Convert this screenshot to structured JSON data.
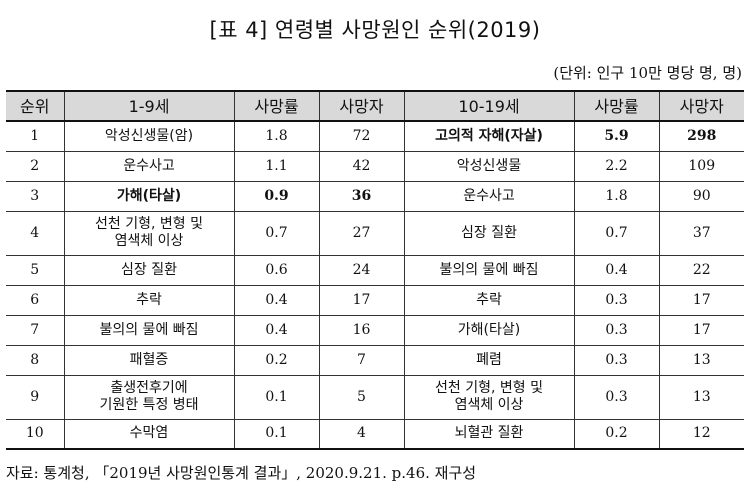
{
  "title": "[표 4] 연령별 사망원인 순위(2019)",
  "unit": "(단위: 인구 10만 명당 명, 명)",
  "table": {
    "headers": [
      "순위",
      "1-9세",
      "사망률",
      "사망자",
      "10-19세",
      "사망률",
      "사망자"
    ],
    "rows": [
      {
        "rank": "1",
        "cause_a": "악성신생물(암)",
        "rate_a": "1.8",
        "deaths_a": "72",
        "cause_b": "고의적 자해(자살)",
        "rate_b": "5.9",
        "deaths_b": "298",
        "bold_a": false,
        "bold_b": true
      },
      {
        "rank": "2",
        "cause_a": "운수사고",
        "rate_a": "1.1",
        "deaths_a": "42",
        "cause_b": "악성신생물",
        "rate_b": "2.2",
        "deaths_b": "109",
        "bold_a": false,
        "bold_b": false
      },
      {
        "rank": "3",
        "cause_a": "가해(타살)",
        "rate_a": "0.9",
        "deaths_a": "36",
        "cause_b": "운수사고",
        "rate_b": "1.8",
        "deaths_b": "90",
        "bold_a": true,
        "bold_b": false
      },
      {
        "rank": "4",
        "cause_a": "선천 기형, 변형 및\n염색체 이상",
        "rate_a": "0.7",
        "deaths_a": "27",
        "cause_b": "심장 질환",
        "rate_b": "0.7",
        "deaths_b": "37",
        "bold_a": false,
        "bold_b": false
      },
      {
        "rank": "5",
        "cause_a": "심장 질환",
        "rate_a": "0.6",
        "deaths_a": "24",
        "cause_b": "불의의 물에 빠짐",
        "rate_b": "0.4",
        "deaths_b": "22",
        "bold_a": false,
        "bold_b": false
      },
      {
        "rank": "6",
        "cause_a": "추락",
        "rate_a": "0.4",
        "deaths_a": "17",
        "cause_b": "추락",
        "rate_b": "0.3",
        "deaths_b": "17",
        "bold_a": false,
        "bold_b": false
      },
      {
        "rank": "7",
        "cause_a": "불의의 물에 빠짐",
        "rate_a": "0.4",
        "deaths_a": "16",
        "cause_b": "가해(타살)",
        "rate_b": "0.3",
        "deaths_b": "17",
        "bold_a": false,
        "bold_b": false
      },
      {
        "rank": "8",
        "cause_a": "패혈증",
        "rate_a": "0.2",
        "deaths_a": "7",
        "cause_b": "폐렴",
        "rate_b": "0.3",
        "deaths_b": "13",
        "bold_a": false,
        "bold_b": false
      },
      {
        "rank": "9",
        "cause_a": "출생전후기에\n기원한 특정 병태",
        "rate_a": "0.1",
        "deaths_a": "5",
        "cause_b": "선천 기형, 변형 및\n염색체 이상",
        "rate_b": "0.3",
        "deaths_b": "13",
        "bold_a": false,
        "bold_b": false
      },
      {
        "rank": "10",
        "cause_a": "수막염",
        "rate_a": "0.1",
        "deaths_a": "4",
        "cause_b": "뇌혈관 질환",
        "rate_b": "0.2",
        "deaths_b": "12",
        "bold_a": false,
        "bold_b": false
      }
    ]
  },
  "source": "자료: 통계청, 「2019년 사망원인통계 결과」, 2020.9.21. p.46. 재구성"
}
